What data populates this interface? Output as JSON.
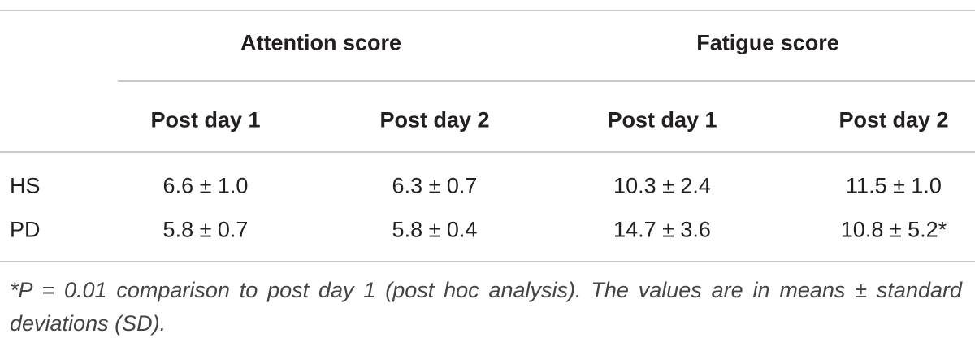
{
  "table": {
    "groups": [
      "Attention score",
      "Fatigue score"
    ],
    "columns": [
      "Post day 1",
      "Post day 2",
      "Post day 1",
      "Post day 2"
    ],
    "rows": [
      {
        "label": "HS",
        "cells": [
          "6.6 ± 1.0",
          "6.3 ± 0.7",
          "10.3 ± 2.4",
          "11.5 ± 1.0"
        ]
      },
      {
        "label": "PD",
        "cells": [
          "5.8 ± 0.7",
          "5.8 ± 0.4",
          "14.7 ± 3.6",
          "10.8 ± 5.2*"
        ]
      }
    ],
    "footnote": "*P = 0.01 comparison to post day 1 (post hoc analysis). The values are in means ± standard deviations (SD)."
  }
}
